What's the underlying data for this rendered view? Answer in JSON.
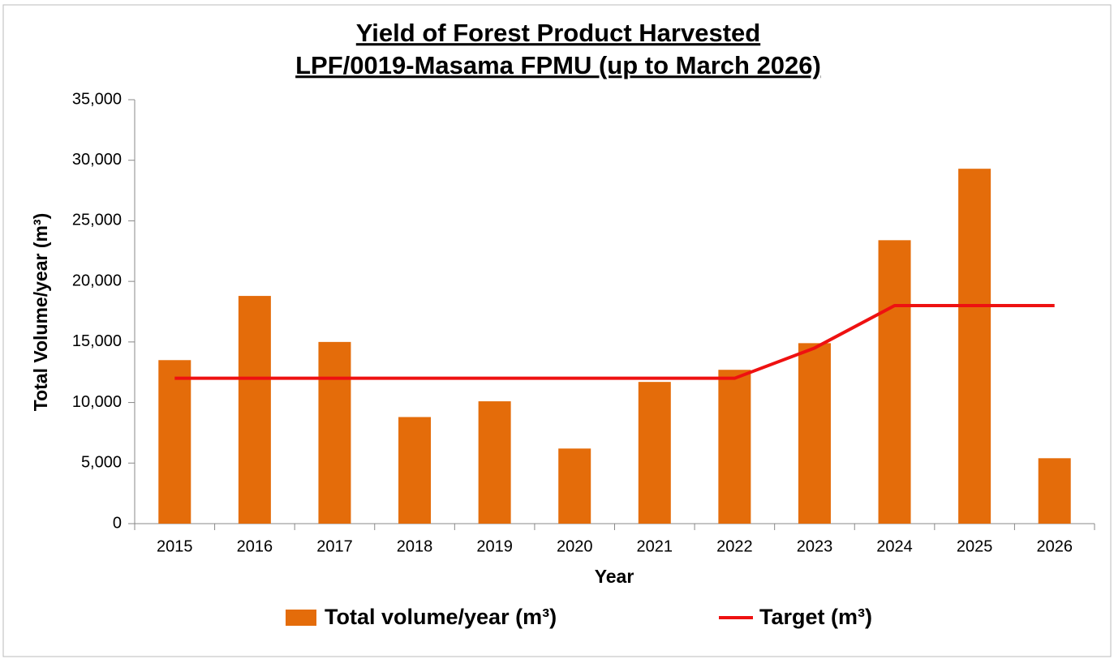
{
  "chart_data": {
    "type": "bar",
    "title": "Yield of Forest Product Harvested",
    "subtitle": "LPF/0019-Masama FPMU (up to March 2026)",
    "x_label": "Year",
    "y_label": "Total Volume/year (m³)",
    "categories": [
      "2015",
      "2016",
      "2017",
      "2018",
      "2019",
      "2020",
      "2021",
      "2022",
      "2023",
      "2024",
      "2025",
      "2026"
    ],
    "series": [
      {
        "name": "Total volume/year (m³)",
        "type": "bar",
        "color": "#e46c0a",
        "values": [
          13500,
          18800,
          15000,
          8800,
          10100,
          6200,
          11700,
          12700,
          14900,
          23400,
          29300,
          5400
        ]
      },
      {
        "name": "Target (m³)",
        "type": "line",
        "color": "#ee1111",
        "values": [
          12000,
          12000,
          12000,
          12000,
          12000,
          12000,
          12000,
          12000,
          14500,
          18000,
          18000,
          18000
        ]
      }
    ],
    "ylim": [
      0,
      35000
    ],
    "yticks": [
      0,
      {
        "value": 5000,
        "label": "5,000"
      },
      {
        "value": 10000,
        "label": "10,000"
      },
      {
        "value": 15000,
        "label": "15,000"
      },
      {
        "value": 20000,
        "label": "20,000"
      },
      {
        "value": 25000,
        "label": "25,000"
      },
      {
        "value": 30000,
        "label": "30,000"
      },
      {
        "value": 35000,
        "label": "35,000"
      }
    ],
    "grid": false,
    "legend": "bottom"
  }
}
